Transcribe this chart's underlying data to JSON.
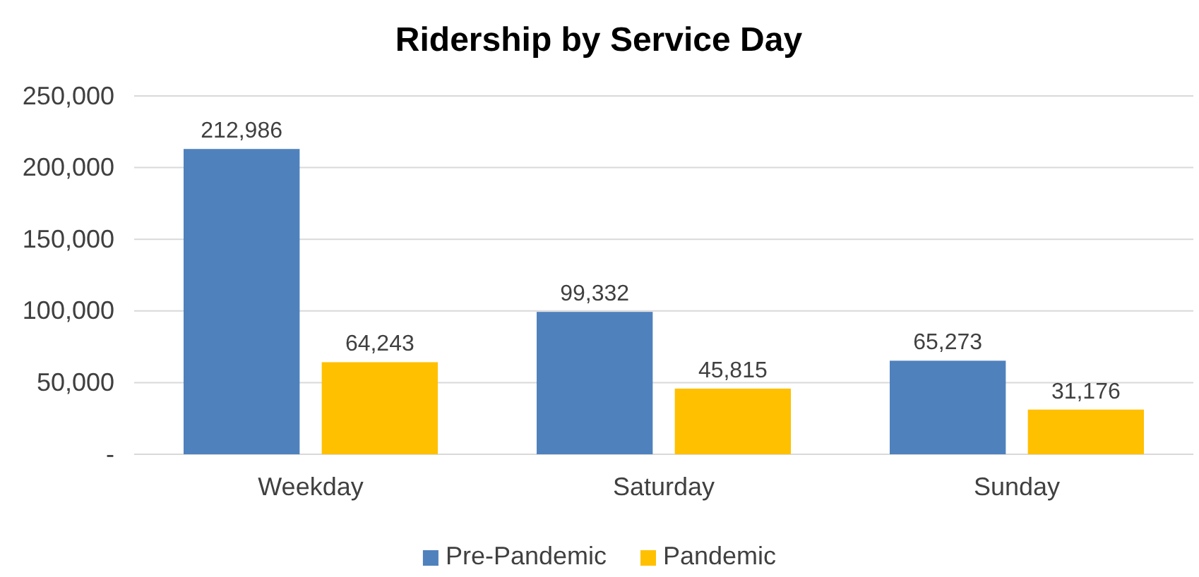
{
  "chart_data": {
    "type": "bar",
    "title": "Ridership by Service Day",
    "categories": [
      "Weekday",
      "Saturday",
      "Sunday"
    ],
    "series": [
      {
        "name": "Pre-Pandemic",
        "color": "#4f81bd",
        "values": [
          212986,
          99332,
          65273
        ],
        "value_labels": [
          "212,986",
          "99,332",
          "65,273"
        ]
      },
      {
        "name": "Pandemic",
        "color": "#ffc000",
        "values": [
          64243,
          45815,
          31176
        ],
        "value_labels": [
          "64,243",
          "45,815",
          "31,176"
        ]
      }
    ],
    "ylim": [
      0,
      250000
    ],
    "yticks": [
      {
        "value": 0,
        "label": "-"
      },
      {
        "value": 50000,
        "label": "50,000"
      },
      {
        "value": 100000,
        "label": "100,000"
      },
      {
        "value": 150000,
        "label": "150,000"
      },
      {
        "value": 200000,
        "label": "200,000"
      },
      {
        "value": 250000,
        "label": "250,000"
      }
    ],
    "grid": "y",
    "legend": "bottom"
  }
}
